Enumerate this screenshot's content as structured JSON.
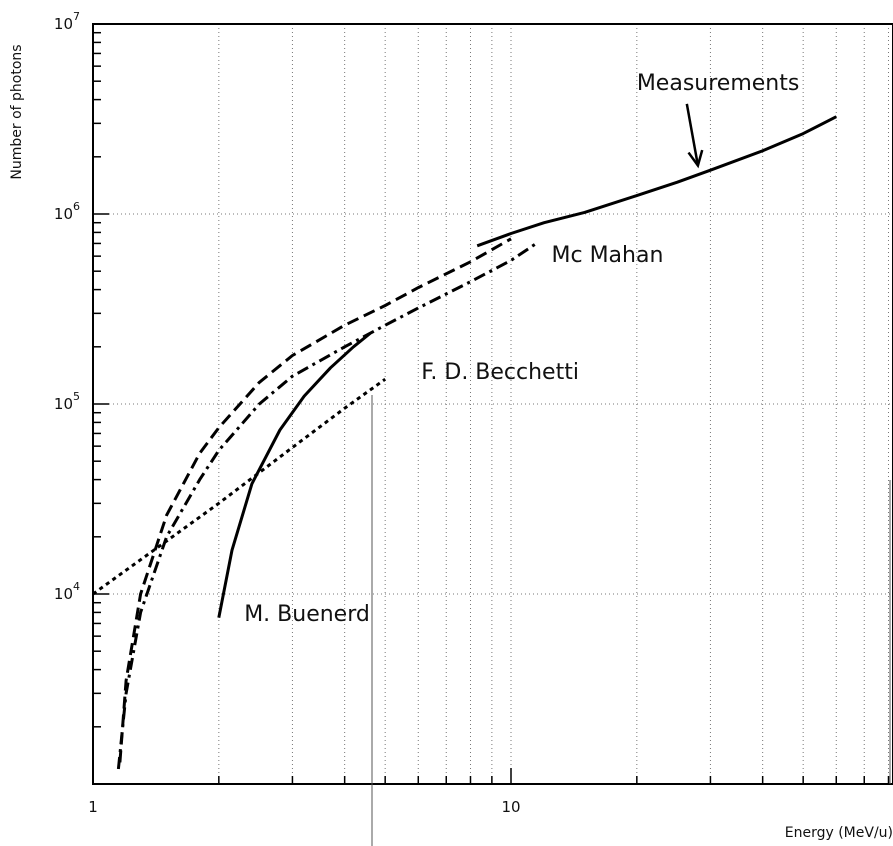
{
  "chart_data": {
    "type": "line",
    "title": "",
    "xlabel": "Energy (MeV/u)",
    "ylabel": "Number of photons",
    "x_scale": "log",
    "y_scale": "log",
    "xlim": [
      1,
      90
    ],
    "ylim": [
      1000,
      10000000
    ],
    "grid": true,
    "x_ticks": [
      {
        "value": 1,
        "label": "1"
      },
      {
        "value": 10,
        "label": "10"
      }
    ],
    "y_ticks": [
      {
        "value": 10000,
        "base": "10",
        "exp": "4"
      },
      {
        "value": 100000,
        "base": "10",
        "exp": "5"
      },
      {
        "value": 1000000,
        "base": "10",
        "exp": "6"
      },
      {
        "value": 10000000,
        "base": "10",
        "exp": "7"
      }
    ],
    "series": [
      {
        "name": "Measurements",
        "style": "solid",
        "x": [
          8.3,
          10,
          12,
          15,
          20,
          25,
          30,
          40,
          50,
          60
        ],
        "y": [
          680000,
          790000,
          900000,
          1020000,
          1250000,
          1470000,
          1700000,
          2150000,
          2650000,
          3250000
        ]
      },
      {
        "name": "Mc Mahan",
        "style": "dash-dot",
        "x": [
          1.15,
          1.2,
          1.3,
          1.5,
          1.8,
          2,
          2.5,
          3,
          4,
          5,
          6,
          8,
          10,
          11.5
        ],
        "y": [
          1200,
          3000,
          8000,
          20000,
          40000,
          57000,
          100000,
          140000,
          200000,
          260000,
          320000,
          440000,
          570000,
          700000
        ]
      },
      {
        "name": "",
        "style": "dashed",
        "x": [
          1.16,
          1.2,
          1.3,
          1.5,
          1.8,
          2,
          2.5,
          3,
          4,
          5,
          6,
          8,
          10
        ],
        "y": [
          1300,
          3500,
          10000,
          26000,
          55000,
          75000,
          130000,
          180000,
          260000,
          330000,
          410000,
          560000,
          740000
        ]
      },
      {
        "name": "M. Buenerd",
        "style": "solid",
        "x": [
          2,
          2.15,
          2.4,
          2.8,
          3.2,
          3.7,
          4.2,
          4.6
        ],
        "y": [
          7500,
          17000,
          38000,
          73000,
          110000,
          155000,
          200000,
          235000
        ]
      },
      {
        "name": "F. D. Becchetti",
        "style": "dotted",
        "x": [
          1,
          1.5,
          2,
          3,
          4,
          5
        ],
        "y": [
          10000,
          19000,
          30000,
          59000,
          95000,
          135000
        ]
      }
    ],
    "annotations": [
      {
        "text": "Measurements",
        "x": 20,
        "y": 4500000,
        "arrow_to_x": 28,
        "arrow_to_y": 1800000
      },
      {
        "text": "Mc Mahan",
        "x": 12.5,
        "y": 560000
      },
      {
        "text": "F. D. Becchetti",
        "x": 6.1,
        "y": 135000
      },
      {
        "text": "M. Buenerd",
        "x": 2.3,
        "y": 7200
      }
    ]
  }
}
